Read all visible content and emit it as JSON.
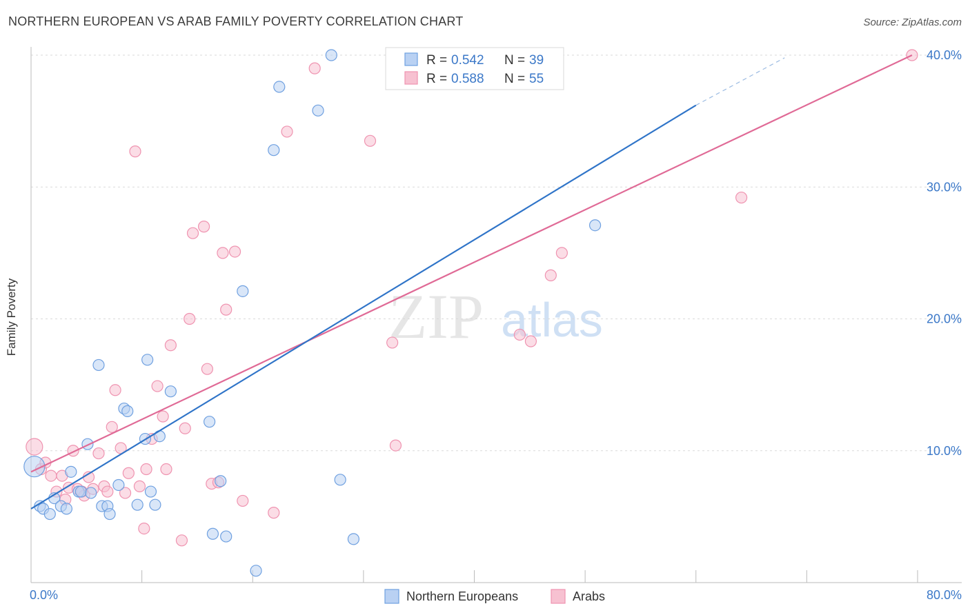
{
  "header": {
    "title": "NORTHERN EUROPEAN VS ARAB FAMILY POVERTY CORRELATION CHART",
    "source": "Source: ZipAtlas.com"
  },
  "watermark": {
    "zip": "ZIP",
    "atlas": "atlas"
  },
  "legend_box": {
    "rows": [
      {
        "r_label": "R = ",
        "r_value": "0.542",
        "n_label": "N = ",
        "n_value": "39",
        "color": "#6fa0e0"
      },
      {
        "r_label": "R = ",
        "r_value": "0.588",
        "n_label": "N = ",
        "n_value": "55",
        "color": "#ef93b0"
      }
    ]
  },
  "colors": {
    "blue_fill": "#b9d1f3",
    "blue_stroke": "#6fa0e0",
    "blue_line": "#2f74c8",
    "pink_fill": "#f7c1d1",
    "pink_stroke": "#ef93b0",
    "pink_line": "#e06a96",
    "tick_label": "#3b78c8",
    "grid": "#d9d9d9"
  },
  "chart_data": {
    "type": "scatter",
    "title": "NORTHERN EUROPEAN VS ARAB FAMILY POVERTY CORRELATION CHART",
    "xlabel": "",
    "ylabel": "Family Poverty",
    "xlim": [
      0,
      80
    ],
    "ylim": [
      0,
      40
    ],
    "x_tick_labels": [
      "0.0%",
      "80.0%"
    ],
    "y_ticks": [
      10,
      20,
      30,
      40
    ],
    "y_tick_labels": [
      "10.0%",
      "20.0%",
      "30.0%",
      "40.0%"
    ],
    "grid": true,
    "legend_position": "bottom-center",
    "series": [
      {
        "name": "Northern Europeans",
        "color": "#6fa0e0",
        "r": 0.542,
        "n": 39,
        "trend": {
          "x": [
            0,
            60
          ],
          "y": [
            5.6,
            36.2
          ],
          "dashed_to": [
            68,
            39.8
          ]
        },
        "points": [
          [
            0.3,
            8.8
          ],
          [
            0.8,
            5.8
          ],
          [
            1.1,
            5.6
          ],
          [
            1.7,
            5.2
          ],
          [
            2.1,
            6.4
          ],
          [
            2.7,
            5.8
          ],
          [
            3.2,
            5.6
          ],
          [
            3.6,
            8.4
          ],
          [
            4.3,
            6.9
          ],
          [
            4.5,
            6.9
          ],
          [
            5.1,
            10.5
          ],
          [
            5.4,
            6.8
          ],
          [
            6.1,
            16.5
          ],
          [
            6.4,
            5.8
          ],
          [
            6.9,
            5.8
          ],
          [
            7.1,
            5.2
          ],
          [
            7.9,
            7.4
          ],
          [
            8.4,
            13.2
          ],
          [
            8.7,
            13.0
          ],
          [
            9.6,
            5.9
          ],
          [
            10.3,
            10.9
          ],
          [
            10.5,
            16.9
          ],
          [
            10.8,
            6.9
          ],
          [
            11.2,
            5.9
          ],
          [
            11.6,
            11.1
          ],
          [
            12.6,
            14.5
          ],
          [
            16.1,
            12.2
          ],
          [
            16.4,
            3.7
          ],
          [
            17.1,
            7.7
          ],
          [
            17.6,
            3.5
          ],
          [
            19.1,
            22.1
          ],
          [
            20.3,
            0.9
          ],
          [
            21.9,
            32.8
          ],
          [
            22.4,
            37.6
          ],
          [
            25.9,
            35.8
          ],
          [
            27.1,
            40.0
          ],
          [
            27.9,
            7.8
          ],
          [
            29.1,
            3.3
          ],
          [
            50.9,
            27.1
          ]
        ]
      },
      {
        "name": "Arabs",
        "color": "#ef93b0",
        "r": 0.588,
        "n": 55,
        "trend": {
          "x": [
            0,
            79.5
          ],
          "y": [
            8.4,
            40.0
          ]
        },
        "points": [
          [
            0.3,
            10.3
          ],
          [
            0.9,
            8.6
          ],
          [
            1.3,
            9.1
          ],
          [
            1.8,
            8.1
          ],
          [
            2.3,
            6.9
          ],
          [
            2.8,
            8.1
          ],
          [
            3.1,
            6.3
          ],
          [
            3.4,
            7.2
          ],
          [
            3.8,
            10.0
          ],
          [
            4.2,
            7.1
          ],
          [
            4.6,
            6.9
          ],
          [
            4.8,
            6.6
          ],
          [
            5.2,
            8.0
          ],
          [
            5.6,
            7.1
          ],
          [
            6.1,
            9.8
          ],
          [
            6.6,
            7.3
          ],
          [
            6.9,
            6.9
          ],
          [
            7.3,
            11.8
          ],
          [
            7.6,
            14.6
          ],
          [
            8.1,
            10.2
          ],
          [
            8.5,
            6.8
          ],
          [
            8.8,
            8.3
          ],
          [
            9.4,
            32.7
          ],
          [
            9.8,
            7.3
          ],
          [
            10.2,
            4.1
          ],
          [
            10.4,
            8.6
          ],
          [
            10.9,
            10.9
          ],
          [
            11.4,
            14.9
          ],
          [
            11.9,
            12.6
          ],
          [
            12.2,
            8.6
          ],
          [
            12.6,
            18.0
          ],
          [
            13.6,
            3.2
          ],
          [
            13.9,
            11.7
          ],
          [
            14.3,
            20.0
          ],
          [
            14.6,
            26.5
          ],
          [
            15.6,
            27.0
          ],
          [
            15.9,
            16.2
          ],
          [
            16.3,
            7.5
          ],
          [
            16.9,
            7.6
          ],
          [
            17.3,
            25.0
          ],
          [
            17.6,
            20.7
          ],
          [
            18.4,
            25.1
          ],
          [
            19.1,
            6.2
          ],
          [
            21.9,
            5.3
          ],
          [
            23.1,
            34.2
          ],
          [
            25.6,
            39.0
          ],
          [
            30.6,
            33.5
          ],
          [
            32.6,
            18.2
          ],
          [
            32.9,
            10.4
          ],
          [
            44.1,
            18.8
          ],
          [
            45.1,
            18.3
          ],
          [
            46.9,
            23.3
          ],
          [
            47.9,
            25.0
          ],
          [
            64.1,
            29.2
          ],
          [
            79.5,
            40.0
          ]
        ]
      }
    ]
  }
}
